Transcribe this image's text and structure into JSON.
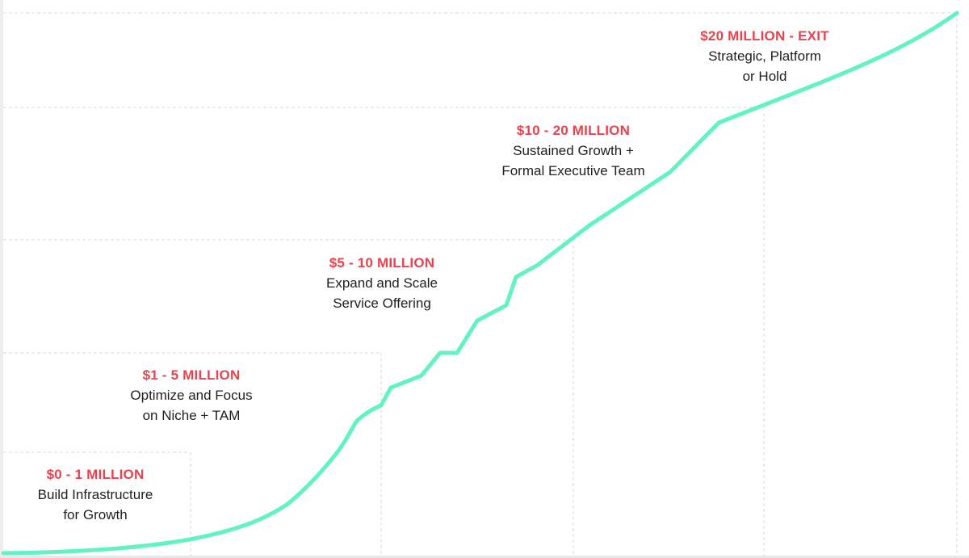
{
  "colors": {
    "curve": "#62f2c6",
    "title": "#e8434e",
    "text": "#1f1f1f",
    "grid": "#d9d9d9"
  },
  "stages": [
    {
      "title": "$0 - 1 MILLION",
      "line1": "Build Infrastructure",
      "line2": "for Growth"
    },
    {
      "title": "$1 - 5 MILLION",
      "line1": "Optimize and Focus",
      "line2": "on Niche + TAM"
    },
    {
      "title": "$5 - 10 MILLION",
      "line1": "Expand and Scale",
      "line2": "Service Offering"
    },
    {
      "title": "$10 - 20 MILLION",
      "line1": "Sustained Growth +",
      "line2": "Formal Executive Team"
    },
    {
      "title": "$20 MILLION - EXIT",
      "line1": "Strategic, Platform",
      "line2": "or Hold"
    }
  ]
}
